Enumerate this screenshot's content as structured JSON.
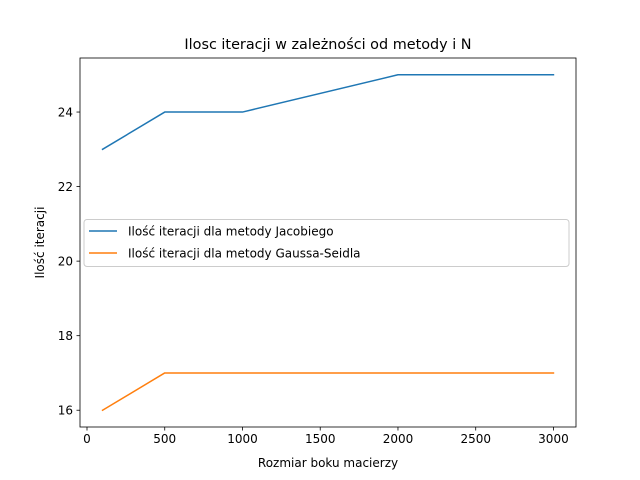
{
  "chart_data": {
    "type": "line",
    "title": "Ilosc iteracji w zależności od metody i N",
    "xlabel": "Rozmiar boku macierzy",
    "ylabel": "Ilość iteracji",
    "xlim": [
      -45,
      3145
    ],
    "ylim": [
      15.55,
      25.45
    ],
    "xticks": [
      0,
      500,
      1000,
      1500,
      2000,
      2500,
      3000
    ],
    "yticks": [
      16,
      18,
      20,
      22,
      24
    ],
    "x": [
      100,
      500,
      1000,
      2000,
      3000
    ],
    "series": [
      {
        "name": "Ilość iteracji dla metody Jacobiego",
        "color": "#1f77b4",
        "values": [
          23,
          24,
          24,
          25,
          25
        ]
      },
      {
        "name": "Ilość iteracji dla metody Gaussa-Seidla",
        "color": "#ff7f0e",
        "values": [
          16,
          17,
          17,
          17,
          17
        ]
      }
    ],
    "grid": false,
    "legend_position": "center-left"
  }
}
